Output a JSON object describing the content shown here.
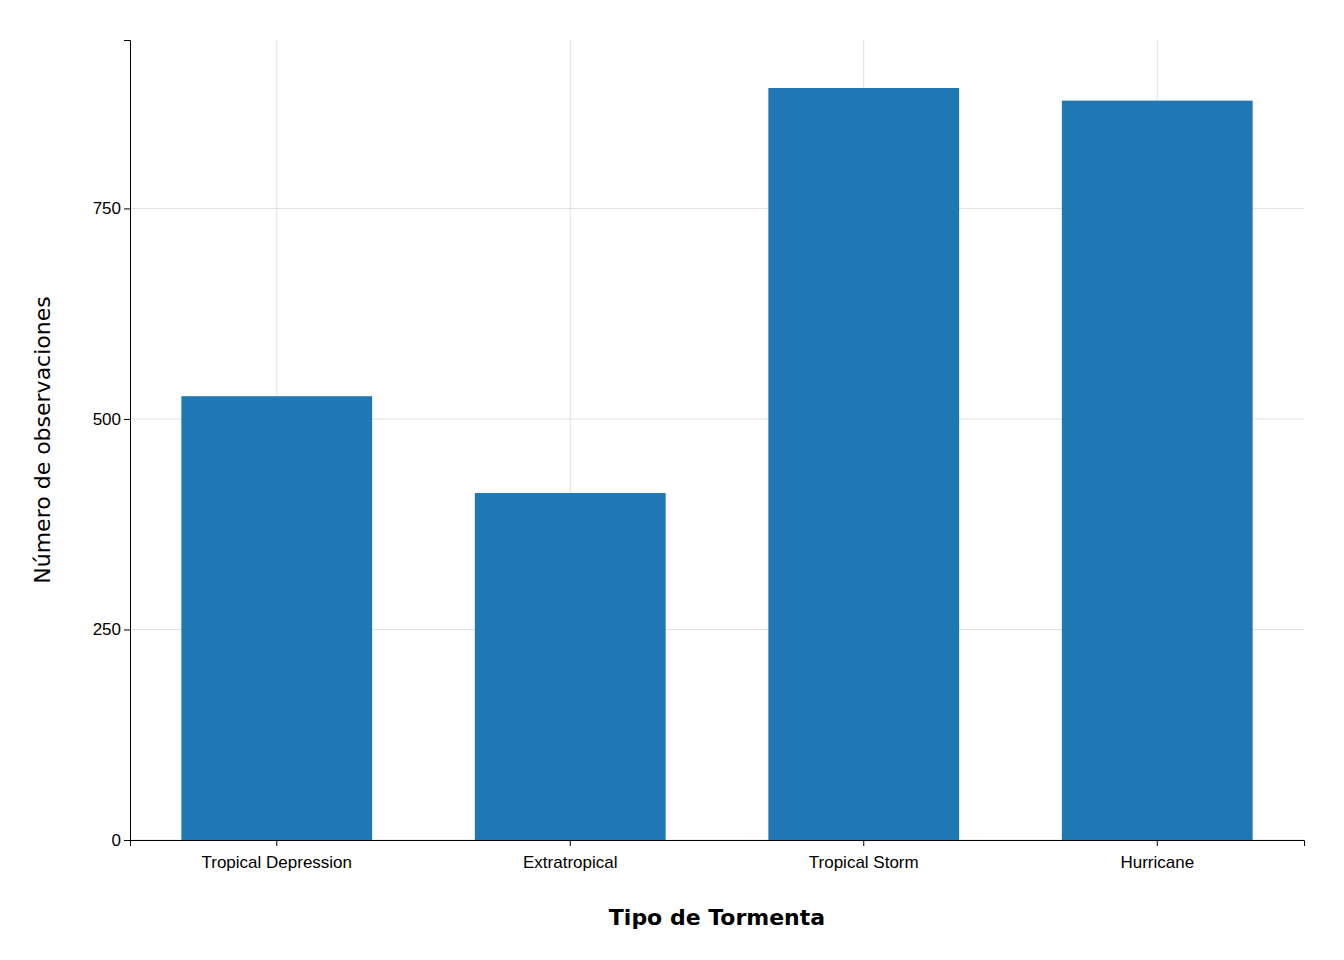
{
  "chart_data": {
    "type": "bar",
    "categories": [
      "Tropical Depression",
      "Extratropical",
      "Tropical Storm",
      "Hurricane"
    ],
    "values": [
      527,
      412,
      893,
      878
    ],
    "xlabel": "Tipo de Tormenta",
    "ylabel": "Número de observaciones",
    "ylim": [
      0,
      950
    ],
    "yticks": [
      0,
      250,
      500,
      750
    ],
    "grid": true
  }
}
